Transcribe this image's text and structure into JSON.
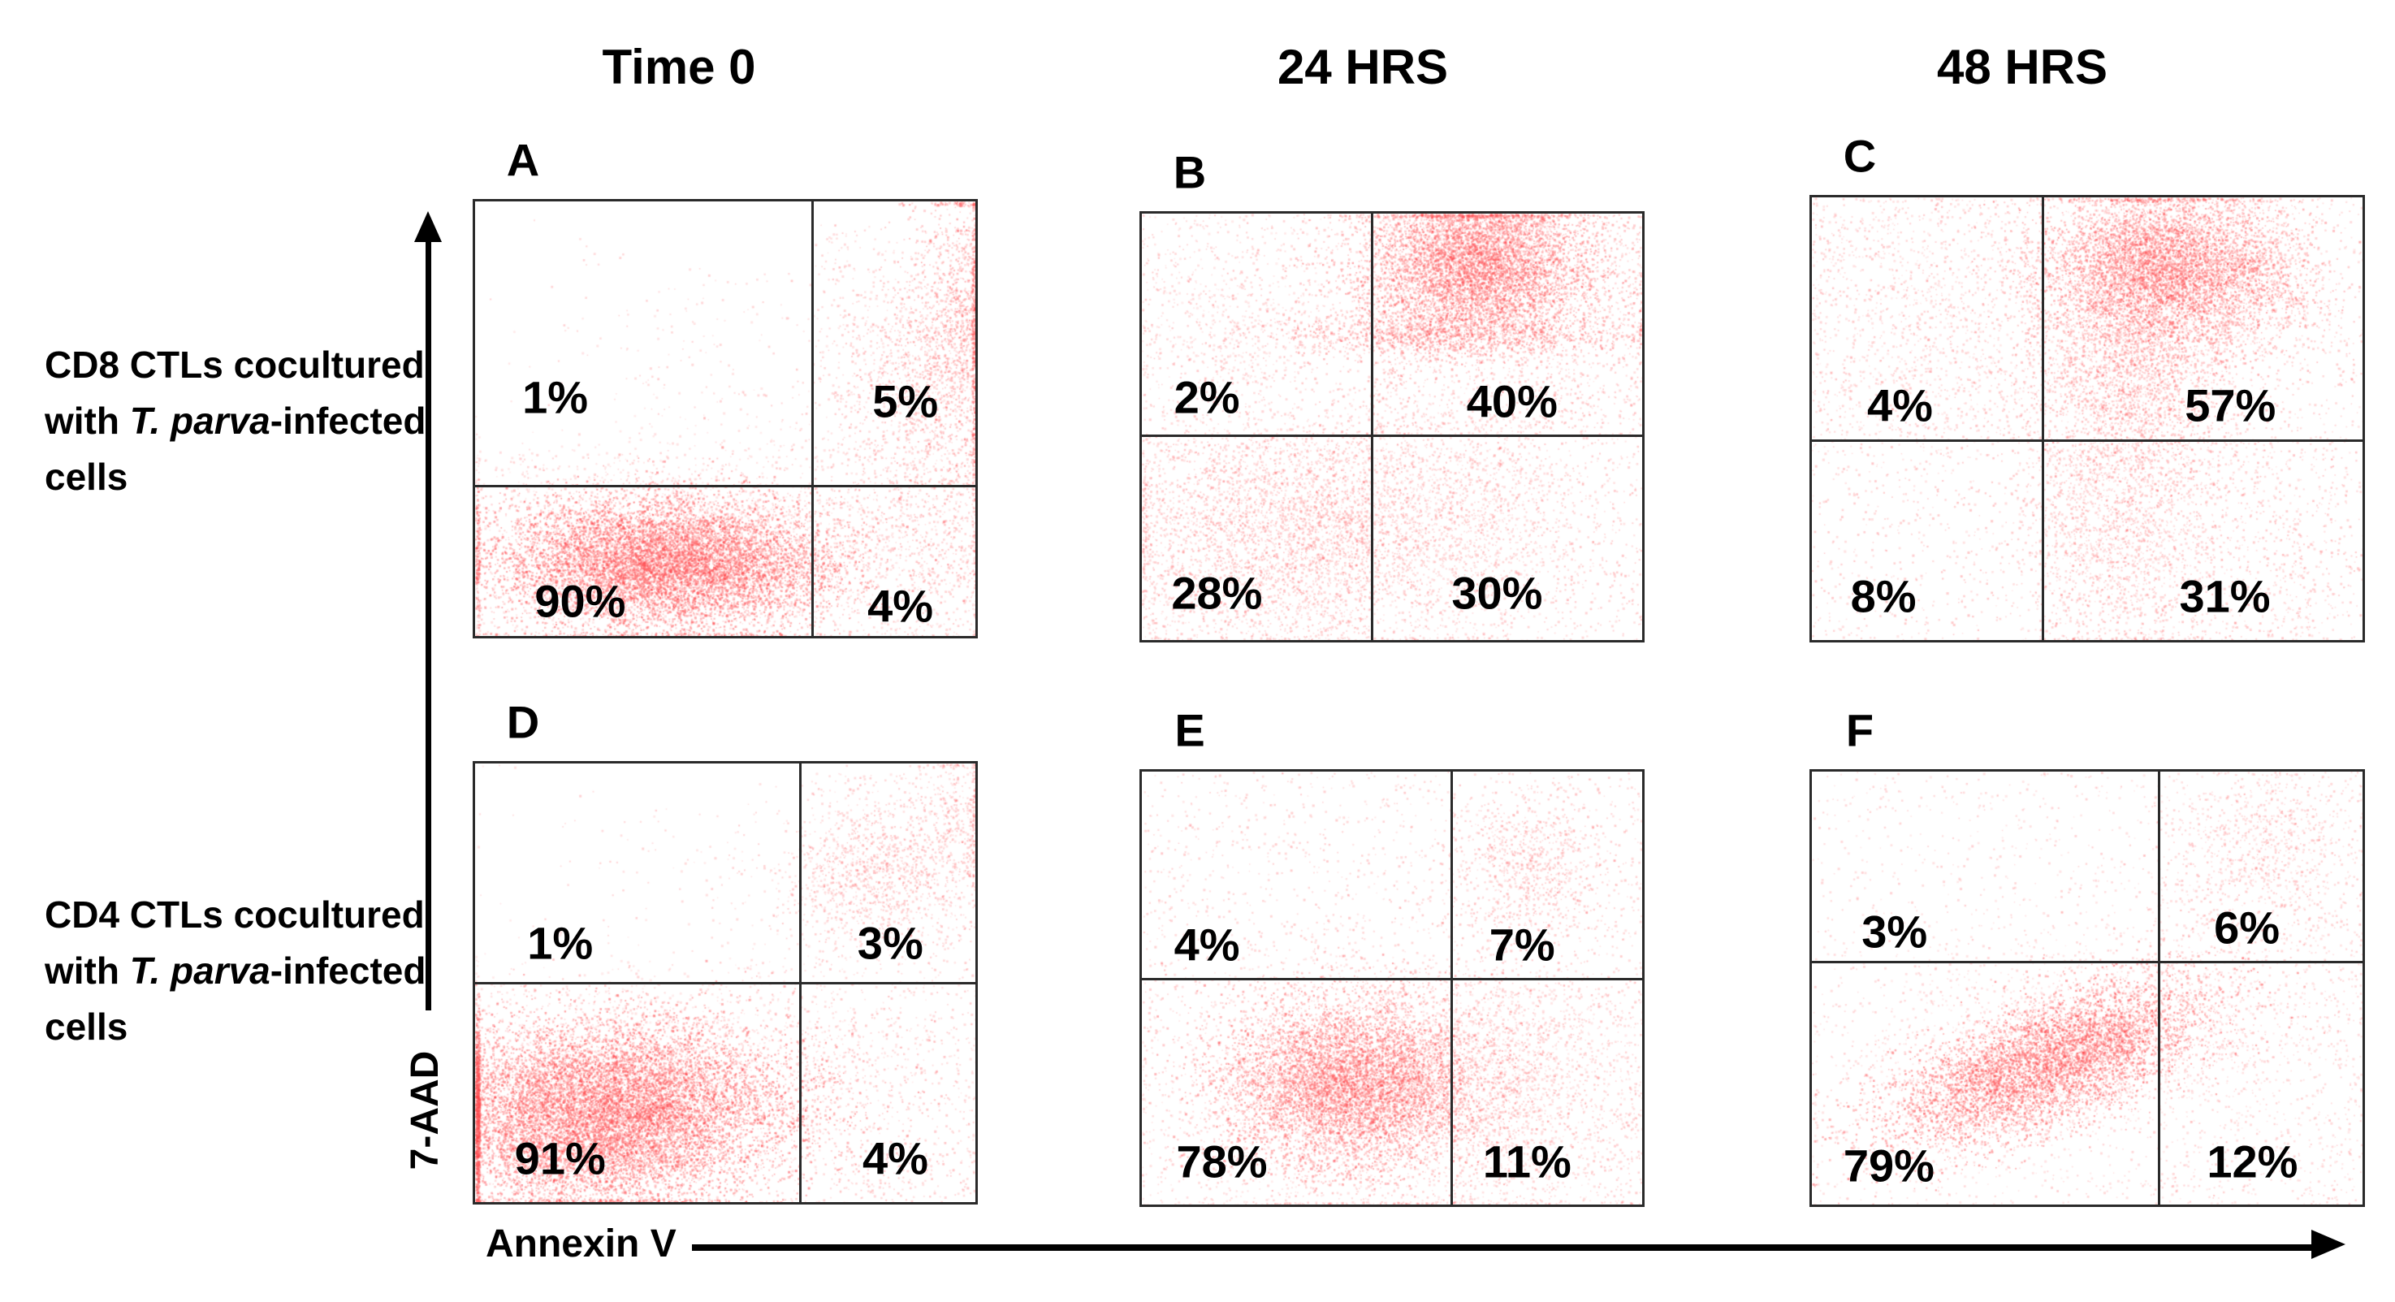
{
  "header": {
    "columns": [
      "Time 0",
      "24 HRS",
      "48 HRS"
    ]
  },
  "rows": [
    {
      "prefix": "CD8 CTLs cocultured with ",
      "italic": "T. parva",
      "suffix": "-infected cells"
    },
    {
      "prefix": "CD4 CTLs cocultured with ",
      "italic": "T. parva",
      "suffix": "-infected cells"
    }
  ],
  "axes": {
    "x": "Annexin V",
    "y": "7-AAD"
  },
  "colors": {
    "dot": "#ff4d4d",
    "dot_dark": "#ff3b44",
    "dot_light": "#ff7070",
    "line": "#2a2a2a",
    "text": "#000000"
  },
  "chart_data": [
    {
      "letter": "A",
      "type": "scatter",
      "timepoint": "Time 0",
      "population": "CD8 CTLs cocultured with T. parva-infected cells",
      "xlabel": "Annexin V",
      "ylabel": "7-AAD",
      "gates": {
        "x": 0.675,
        "y": 0.655
      },
      "quadrants": {
        "upper_left": {
          "label": "1%",
          "value": 1,
          "pos": [
            0.16,
            0.45
          ]
        },
        "upper_right": {
          "label": "5%",
          "value": 5,
          "pos": [
            0.86,
            0.46
          ]
        },
        "lower_left": {
          "label": "90%",
          "value": 90,
          "pos": [
            0.21,
            0.92
          ]
        },
        "lower_right": {
          "label": "4%",
          "value": 4,
          "pos": [
            0.85,
            0.93
          ]
        }
      },
      "dots": {
        "gauss": [
          [
            0.38,
            0.83,
            0.17,
            0.075,
            8500,
            0.5,
            0
          ],
          [
            0.4,
            0.8,
            0.24,
            0.12,
            2200,
            0.22,
            0
          ],
          [
            0.97,
            0.3,
            0.055,
            0.17,
            1300,
            0.4,
            0
          ],
          [
            0.86,
            0.42,
            0.09,
            0.14,
            900,
            0.3,
            0
          ],
          [
            0.93,
            0.75,
            0.08,
            0.13,
            450,
            0.3,
            0
          ]
        ],
        "uniform": [
          [
            0.0,
            0.58,
            0.675,
            1.0,
            500,
            0.28
          ],
          [
            0.675,
            0.6,
            1.0,
            1.0,
            450,
            0.28
          ],
          [
            0.3,
            0.15,
            0.675,
            0.6,
            160,
            0.25
          ],
          [
            0.675,
            0.05,
            1.0,
            0.6,
            350,
            0.28
          ],
          [
            0.02,
            0.02,
            0.3,
            0.5,
            30,
            0.25
          ]
        ]
      }
    },
    {
      "letter": "B",
      "type": "scatter",
      "timepoint": "24 HRS",
      "population": "CD8 CTLs cocultured with T. parva-infected cells",
      "xlabel": "Annexin V",
      "ylabel": "7-AAD",
      "gates": {
        "x": 0.46,
        "y": 0.52
      },
      "quadrants": {
        "upper_left": {
          "label": "2%",
          "value": 2,
          "pos": [
            0.13,
            0.43
          ]
        },
        "upper_right": {
          "label": "40%",
          "value": 40,
          "pos": [
            0.74,
            0.44
          ]
        },
        "lower_left": {
          "label": "28%",
          "value": 28,
          "pos": [
            0.15,
            0.89
          ]
        },
        "lower_right": {
          "label": "30%",
          "value": 30,
          "pos": [
            0.71,
            0.89
          ]
        }
      },
      "dots": {
        "gauss": [
          [
            0.67,
            0.13,
            0.11,
            0.075,
            4800,
            0.45,
            0
          ],
          [
            0.62,
            0.28,
            0.17,
            0.03,
            1300,
            0.4,
            0
          ],
          [
            0.66,
            0.03,
            0.12,
            0.03,
            800,
            0.4,
            0
          ],
          [
            0.3,
            0.74,
            0.17,
            0.12,
            2200,
            0.3,
            0
          ],
          [
            0.62,
            0.72,
            0.14,
            0.14,
            1700,
            0.25,
            0
          ],
          [
            0.2,
            0.28,
            0.12,
            0.14,
            500,
            0.22,
            0
          ]
        ],
        "uniform": [
          [
            0.0,
            0.0,
            1.0,
            1.0,
            3200,
            0.3
          ],
          [
            0.46,
            0.05,
            1.0,
            0.52,
            900,
            0.3
          ],
          [
            0.0,
            0.52,
            0.46,
            1.0,
            900,
            0.3
          ]
        ]
      }
    },
    {
      "letter": "C",
      "type": "scatter",
      "timepoint": "48 HRS",
      "population": "CD8 CTLs cocultured with T. parva-infected cells",
      "xlabel": "Annexin V",
      "ylabel": "7-AAD",
      "gates": {
        "x": 0.42,
        "y": 0.55
      },
      "quadrants": {
        "upper_left": {
          "label": "4%",
          "value": 4,
          "pos": [
            0.16,
            0.47
          ]
        },
        "upper_right": {
          "label": "57%",
          "value": 57,
          "pos": [
            0.76,
            0.47
          ]
        },
        "lower_left": {
          "label": "8%",
          "value": 8,
          "pos": [
            0.13,
            0.9
          ]
        },
        "lower_right": {
          "label": "31%",
          "value": 31,
          "pos": [
            0.75,
            0.9
          ]
        }
      },
      "dots": {
        "gauss": [
          [
            0.63,
            0.15,
            0.11,
            0.085,
            5000,
            0.45,
            0
          ],
          [
            0.58,
            0.37,
            0.09,
            0.12,
            2400,
            0.35,
            0
          ],
          [
            0.56,
            0.72,
            0.09,
            0.15,
            1500,
            0.28,
            0
          ],
          [
            0.8,
            0.2,
            0.08,
            0.1,
            900,
            0.35,
            0
          ],
          [
            0.22,
            0.3,
            0.13,
            0.17,
            550,
            0.22,
            0
          ]
        ],
        "uniform": [
          [
            0.0,
            0.0,
            1.0,
            1.0,
            2800,
            0.3
          ],
          [
            0.42,
            0.55,
            0.95,
            1.0,
            800,
            0.3
          ],
          [
            0.0,
            0.0,
            0.42,
            0.55,
            500,
            0.28
          ]
        ]
      }
    },
    {
      "letter": "D",
      "type": "scatter",
      "timepoint": "Time 0",
      "population": "CD4 CTLs cocultured with T. parva-infected cells",
      "xlabel": "Annexin V",
      "ylabel": "7-AAD",
      "gates": {
        "x": 0.65,
        "y": 0.5
      },
      "quadrants": {
        "upper_left": {
          "label": "1%",
          "value": 1,
          "pos": [
            0.17,
            0.41
          ]
        },
        "upper_right": {
          "label": "3%",
          "value": 3,
          "pos": [
            0.83,
            0.41
          ]
        },
        "lower_left": {
          "label": "91%",
          "value": 91,
          "pos": [
            0.17,
            0.9
          ]
        },
        "lower_right": {
          "label": "4%",
          "value": 4,
          "pos": [
            0.84,
            0.9
          ]
        }
      },
      "dots": {
        "gauss": [
          [
            0.27,
            0.77,
            0.19,
            0.095,
            8500,
            0.5,
            0
          ],
          [
            0.22,
            0.88,
            0.16,
            0.08,
            3000,
            0.45,
            0
          ],
          [
            0.35,
            0.7,
            0.25,
            0.12,
            1500,
            0.2,
            0
          ],
          [
            0.8,
            0.25,
            0.095,
            0.085,
            1100,
            0.3,
            0
          ],
          [
            0.97,
            0.12,
            0.04,
            0.1,
            350,
            0.3,
            0
          ]
        ],
        "uniform": [
          [
            0.0,
            0.5,
            0.65,
            1.0,
            600,
            0.28
          ],
          [
            0.65,
            0.5,
            1.0,
            1.0,
            650,
            0.3
          ],
          [
            0.65,
            0.02,
            1.0,
            0.5,
            400,
            0.28
          ],
          [
            0.25,
            0.1,
            0.65,
            0.5,
            120,
            0.25
          ],
          [
            0.0,
            0.0,
            0.25,
            0.5,
            25,
            0.25
          ]
        ]
      }
    },
    {
      "letter": "E",
      "type": "scatter",
      "timepoint": "24 HRS",
      "population": "CD4 CTLs cocultured with T. parva-infected cells",
      "xlabel": "Annexin V",
      "ylabel": "7-AAD",
      "gates": {
        "x": 0.62,
        "y": 0.48
      },
      "quadrants": {
        "upper_left": {
          "label": "4%",
          "value": 4,
          "pos": [
            0.13,
            0.4
          ]
        },
        "upper_right": {
          "label": "7%",
          "value": 7,
          "pos": [
            0.76,
            0.4
          ]
        },
        "lower_left": {
          "label": "78%",
          "value": 78,
          "pos": [
            0.16,
            0.9
          ]
        },
        "lower_right": {
          "label": "11%",
          "value": 11,
          "pos": [
            0.77,
            0.9
          ]
        }
      },
      "dots": {
        "gauss": [
          [
            0.42,
            0.72,
            0.13,
            0.1,
            6500,
            0.45,
            0
          ],
          [
            0.45,
            0.74,
            0.2,
            0.15,
            2000,
            0.22,
            0
          ],
          [
            0.77,
            0.22,
            0.085,
            0.085,
            800,
            0.3,
            0
          ],
          [
            0.72,
            0.68,
            0.11,
            0.12,
            900,
            0.25,
            0
          ]
        ],
        "uniform": [
          [
            0.0,
            0.0,
            1.0,
            1.0,
            2400,
            0.28
          ],
          [
            0.62,
            0.48,
            1.0,
            1.0,
            600,
            0.28
          ]
        ]
      }
    },
    {
      "letter": "F",
      "type": "scatter",
      "timepoint": "48 HRS",
      "population": "CD4 CTLs cocultured with T. parva-infected cells",
      "xlabel": "Annexin V",
      "ylabel": "7-AAD",
      "gates": {
        "x": 0.63,
        "y": 0.44
      },
      "quadrants": {
        "upper_left": {
          "label": "3%",
          "value": 3,
          "pos": [
            0.15,
            0.37
          ]
        },
        "upper_right": {
          "label": "6%",
          "value": 6,
          "pos": [
            0.79,
            0.36
          ]
        },
        "lower_left": {
          "label": "79%",
          "value": 79,
          "pos": [
            0.14,
            0.91
          ]
        },
        "lower_right": {
          "label": "12%",
          "value": 12,
          "pos": [
            0.8,
            0.9
          ]
        }
      },
      "dots": {
        "gauss": [
          [
            0.43,
            0.67,
            0.16,
            0.065,
            5500,
            0.5,
            -28
          ],
          [
            0.45,
            0.65,
            0.2,
            0.12,
            1600,
            0.22,
            -25
          ],
          [
            0.82,
            0.17,
            0.085,
            0.095,
            550,
            0.28,
            0
          ]
        ],
        "uniform": [
          [
            0.0,
            0.0,
            1.0,
            1.0,
            1900,
            0.25
          ],
          [
            0.63,
            0.44,
            1.0,
            1.0,
            450,
            0.25
          ],
          [
            0.63,
            0.02,
            1.0,
            0.44,
            350,
            0.28
          ]
        ]
      }
    }
  ]
}
